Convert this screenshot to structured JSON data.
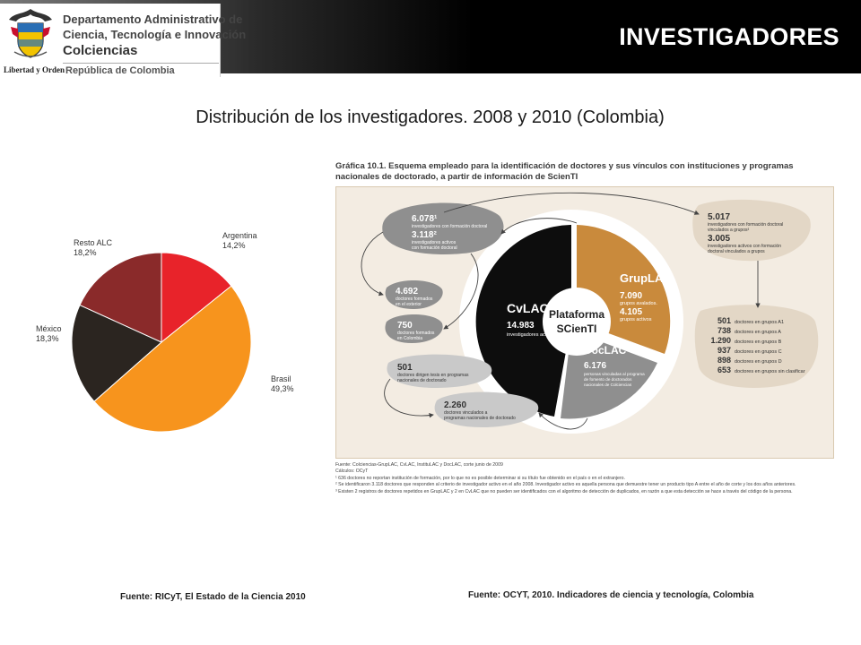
{
  "header": {
    "org_lines": [
      "Departamento Administrativo de",
      "Ciencia, Tecnología e Innovación",
      "Colciencias",
      "República de Colombia"
    ],
    "seal_caption": "Libertad y Orden",
    "title": "INVESTIGADORES",
    "colors": {
      "band": "#000000",
      "title": "#ffffff"
    }
  },
  "main_title": "Distribución de los investigadores. 2008  y 2010 (Colombia)",
  "chart_data": {
    "type": "pie",
    "title": "",
    "slices": [
      {
        "name": "Argentina",
        "label": "14,2%",
        "value": 14.2,
        "color": "#e8232a"
      },
      {
        "name": "Brasil",
        "label": "49,3%",
        "value": 49.3,
        "color": "#f7941d"
      },
      {
        "name": "México",
        "label": "18,3%",
        "value": 18.3,
        "color": "#2b2520"
      },
      {
        "name": "Resto ALC",
        "label": "18,2%",
        "value": 18.2,
        "color": "#8a2a2a"
      }
    ]
  },
  "schema": {
    "title": "Gráfica 10.1. Esquema empleado para la identificación de doctores y sus vínculos con instituciones y programas nacionales de doctorado, a partir de información de ScienTI",
    "center": [
      "Plataforma",
      "SCienTI"
    ],
    "cvlac": {
      "name": "CvLAC",
      "value": "14.983",
      "desc": "investigadores activos"
    },
    "grouplac": {
      "name": "GrupLAC",
      "v1": "7.090",
      "d1": "grupos avalados.",
      "v2": "4.105",
      "d2": "grupos activos"
    },
    "doclac": {
      "name": "DocLAC",
      "value": "6.176",
      "desc": [
        "personas vinculadas al programa",
        "de fomento de doctorados",
        "nacionales de Colciencias"
      ]
    },
    "left_top": {
      "v1": "6.078¹",
      "d1": "investigadores con formación doctoral",
      "v2": "3.118²",
      "d2a": "investigadores activos",
      "d2b": "con formación doctoral"
    },
    "abroad": {
      "value": "4.692",
      "desc": [
        "doctores formados",
        "en el exterior"
      ]
    },
    "colombia": {
      "value": "750",
      "desc": [
        "doctores formados",
        "en Colombia"
      ]
    },
    "theses": {
      "value": "501",
      "desc": [
        "doctores dirigen tesis en programas",
        "nacionales de doctorado"
      ]
    },
    "programs": {
      "value": "2.260",
      "desc": [
        "doctores vinculados a",
        "programas nacionales de doctorado"
      ]
    },
    "right_top": {
      "v1": "5.017",
      "d1a": "investigadores con formación doctoral",
      "d1b": "vinculados a grupos³",
      "v2": "3.005",
      "d2a": "investigadores activos con formación",
      "d2b": "doctoral vinculados a grupos"
    },
    "groups": [
      {
        "value": "501",
        "label": "doctores en grupos A1"
      },
      {
        "value": "738",
        "label": "doctores en grupos A"
      },
      {
        "value": "1.290",
        "label": "doctores en grupos B"
      },
      {
        "value": "937",
        "label": "doctores en grupos C"
      },
      {
        "value": "898",
        "label": "doctores en grupos D"
      },
      {
        "value": "653",
        "label": "doctores en grupos sin clasificar"
      }
    ],
    "notes": [
      "Fuente: Colciencias-GrupLAC, CvLAC, InstituLAC y DocLAC, corte junio de 2009",
      "Cálculos: OCyT",
      "¹ 636 doctores no reportan institución de formación, por lo que no es posible determinar si su título fue obtenido en el país o en el extranjero.",
      "² Se identificaron 3.118 doctores que responden al criterio de investigador activo en el año 2008. Investigador activo es aquella persona que demuestre tener un producto tipo A entre el año de corte y los dos años anteriores.",
      "³ Existen 2 registros de doctores repetidos en GrupLAC y 2 en CvLAC que no pueden ser identificados con el algoritmo de detección de duplicados, en razón a que esta detección se hace a través del código de la persona."
    ]
  },
  "sources": {
    "left": "Fuente: RICyT, El Estado de la Ciencia 2010",
    "right": "Fuente: OCYT, 2010. Indicadores de ciencia y tecnología, Colombia"
  }
}
